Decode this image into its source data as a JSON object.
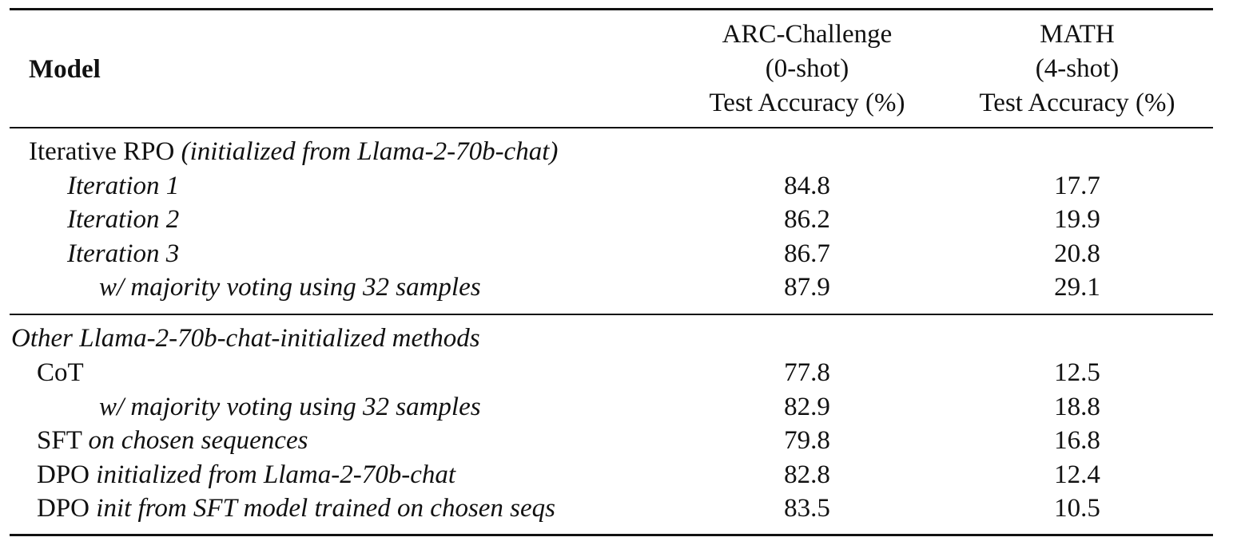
{
  "header": {
    "model": "Model",
    "arc": [
      "ARC-Challenge",
      "(0-shot)",
      "Test Accuracy (%)"
    ],
    "math": [
      "MATH",
      "(4-shot)",
      "Test Accuracy (%)"
    ]
  },
  "sections": [
    {
      "title_main": "Iterative RPO",
      "title_italic": "(initialized from Llama-2-70b-chat)",
      "rows": [
        {
          "label_main": "",
          "label_italic": "Iteration 1",
          "arc": "84.8",
          "math": "17.7"
        },
        {
          "label_main": "",
          "label_italic": "Iteration 2",
          "arc": "86.2",
          "math": "19.9"
        },
        {
          "label_main": "",
          "label_italic": "Iteration 3",
          "arc": "86.7",
          "math": "20.8"
        },
        {
          "label_main": "",
          "label_italic": "w/ majority voting using 32 samples",
          "arc": "87.9",
          "math": "29.1"
        }
      ]
    },
    {
      "title_main": "",
      "title_italic": "Other Llama-2-70b-chat-initialized methods",
      "rows": [
        {
          "label_main": "CoT",
          "label_italic": "",
          "arc": "77.8",
          "math": "12.5"
        },
        {
          "label_main": "",
          "label_italic": "w/ majority voting using 32 samples",
          "arc": "82.9",
          "math": "18.8"
        },
        {
          "label_main": "SFT",
          "label_italic": "on chosen sequences",
          "arc": "79.8",
          "math": "16.8"
        },
        {
          "label_main": "DPO",
          "label_italic": "initialized from Llama-2-70b-chat",
          "arc": "82.8",
          "math": "12.4"
        },
        {
          "label_main": "DPO",
          "label_italic": "init from SFT model trained on chosen seqs",
          "arc": "83.5",
          "math": "10.5"
        }
      ]
    }
  ]
}
